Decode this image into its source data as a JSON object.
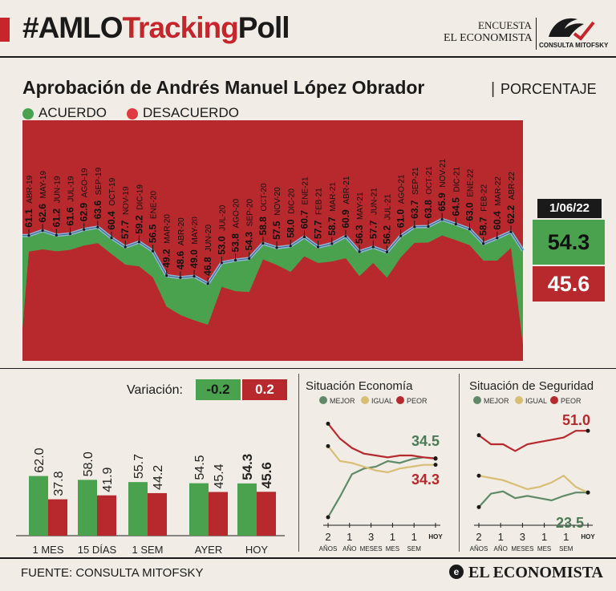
{
  "header": {
    "hashtag_black1": "#AMLO",
    "hashtag_red": "Tracking",
    "hashtag_black2": "Poll",
    "encuesta_line1": "ENCUESTA",
    "encuesta_line2": "EL ECONOMISTA",
    "logo_text": "CONSULTA MITOFSKY"
  },
  "title": "Aprobación de Andrés Manuel López Obrador",
  "subtitle": "PORCENTAJE",
  "legend": {
    "agree": "ACUERDO",
    "disagree": "DESACUERDO"
  },
  "colors": {
    "green": "#4aa24e",
    "red": "#b8292e",
    "line_blue": "#8fb9d6",
    "grey_green": "#5f8a67",
    "tan": "#d8bd74",
    "dark_red": "#b8292e"
  },
  "current": {
    "date": "1/06/22",
    "approve": "54.3",
    "disapprove": "45.6"
  },
  "variation": {
    "label": "Variación:",
    "approve": "-0.2",
    "disapprove": "0.2"
  },
  "chart_data": [
    {
      "type": "area",
      "title": "Aprobación de Andrés Manuel López Obrador",
      "series_names": [
        "ACUERDO",
        "DESACUERDO"
      ],
      "points": [
        {
          "label": "ABR-19",
          "value": 61.1
        },
        {
          "label": "MAY-19",
          "value": 62.6
        },
        {
          "label": "JUN-19",
          "value": 61.2
        },
        {
          "label": "JUL-19",
          "value": 61.6
        },
        {
          "label": "AGO-19",
          "value": 62.9
        },
        {
          "label": "SEP-19",
          "value": 63.6
        },
        {
          "label": "OCT-19",
          "value": 60.4
        },
        {
          "label": "NOV-19",
          "value": 57.7
        },
        {
          "label": "DIC-19",
          "value": 59.2
        },
        {
          "label": "ENE-20",
          "value": 56.5
        },
        {
          "label": "MAR-20",
          "value": 49.2
        },
        {
          "label": "ABR-20",
          "value": 48.6
        },
        {
          "label": "MAY-20",
          "value": 49.0
        },
        {
          "label": "JUN-20",
          "value": 46.8
        },
        {
          "label": "JUL-20",
          "value": 53.0
        },
        {
          "label": "AGO-20",
          "value": 53.8
        },
        {
          "label": "SEP-20",
          "value": 54.3
        },
        {
          "label": "OCT-20",
          "value": 58.8
        },
        {
          "label": "NOV-20",
          "value": 57.5
        },
        {
          "label": "DIC-20",
          "value": 58.0
        },
        {
          "label": "ENE-21",
          "value": 60.7
        },
        {
          "label": "FEB-21",
          "value": 57.7
        },
        {
          "label": "MAR-21",
          "value": 58.7
        },
        {
          "label": "ABR-21",
          "value": 60.9
        },
        {
          "label": "MAY-21",
          "value": 56.3
        },
        {
          "label": "JUN-21",
          "value": 57.7
        },
        {
          "label": "JUL-21",
          "value": 56.2
        },
        {
          "label": "AGO-21",
          "value": 61.0
        },
        {
          "label": "SEP-21",
          "value": 63.7
        },
        {
          "label": "OCT-21",
          "value": 63.8
        },
        {
          "label": "NOV-21",
          "value": 65.9
        },
        {
          "label": "DIC-21",
          "value": 64.5
        },
        {
          "label": "ENE-22",
          "value": 63.0
        },
        {
          "label": "FEB-22",
          "value": 58.7
        },
        {
          "label": "MAR-22",
          "value": 60.4
        },
        {
          "label": "ABR-22",
          "value": 62.2
        }
      ],
      "final_value": 54.3
    },
    {
      "type": "bar",
      "categories": [
        "1 MES",
        "15 DÍAS",
        "1 SEM",
        "AYER",
        "HOY"
      ],
      "series": [
        {
          "name": "ACUERDO",
          "values": [
            62.0,
            58.0,
            55.7,
            54.5,
            54.3
          ]
        },
        {
          "name": "DESACUERDO",
          "values": [
            37.8,
            41.9,
            44.2,
            45.4,
            45.6
          ]
        }
      ],
      "value_labels": {
        "ACUERDO": [
          "62.0",
          "58.0",
          "55.7",
          "54.5",
          "54.3"
        ],
        "DESACUERDO": [
          "37.8",
          "41.9",
          "44.2",
          "45.4",
          "45.6"
        ]
      },
      "ylim": [
        0,
        100
      ]
    },
    {
      "type": "line",
      "title": "Situación Economía",
      "legend": [
        "MEJOR",
        "IGUAL",
        "PEOR"
      ],
      "x_labels": [
        [
          "2",
          "AÑOS"
        ],
        [
          "1",
          "AÑO"
        ],
        [
          "3",
          "MESES"
        ],
        [
          "1",
          "MES"
        ],
        [
          "1",
          "SEM"
        ],
        [
          "",
          "HOY"
        ]
      ],
      "series": [
        {
          "name": "MEJOR",
          "values": [
            3,
            14,
            26,
            29,
            30,
            33,
            32,
            34,
            35,
            34.5
          ]
        },
        {
          "name": "IGUAL",
          "values": [
            41,
            33,
            32,
            30,
            28,
            27,
            29,
            30,
            31,
            31
          ]
        },
        {
          "name": "PEOR",
          "values": [
            53,
            45,
            40,
            37,
            36,
            35,
            36,
            36,
            35,
            34.3
          ]
        }
      ],
      "labels": {
        "MEJOR": "34.5",
        "PEOR": "34.3"
      }
    },
    {
      "type": "line",
      "title": "Situación de Seguridad",
      "legend": [
        "MEJOR",
        "IGUAL",
        "PEOR"
      ],
      "x_labels": [
        [
          "2",
          "AÑOS"
        ],
        [
          "1",
          "AÑO"
        ],
        [
          "3",
          "MESES"
        ],
        [
          "1",
          "MES"
        ],
        [
          "1",
          "SEM"
        ],
        [
          "",
          "HOY"
        ]
      ],
      "series": [
        {
          "name": "MEJOR",
          "values": [
            17,
            23,
            24,
            21,
            22,
            21,
            20,
            22,
            23.5,
            23.5
          ]
        },
        {
          "name": "IGUAL",
          "values": [
            31,
            30,
            29,
            27,
            25,
            26,
            28,
            31,
            26,
            23.5
          ]
        },
        {
          "name": "PEOR",
          "values": [
            49,
            45,
            45,
            42,
            45,
            46,
            47,
            48,
            51,
            51.0
          ]
        }
      ],
      "labels": {
        "PEOR": "51.0",
        "MEJOR": "23.5"
      }
    }
  ],
  "source": "FUENTE: CONSULTA MITOFSKY",
  "footer_logo": "EL ECONOMISTA"
}
